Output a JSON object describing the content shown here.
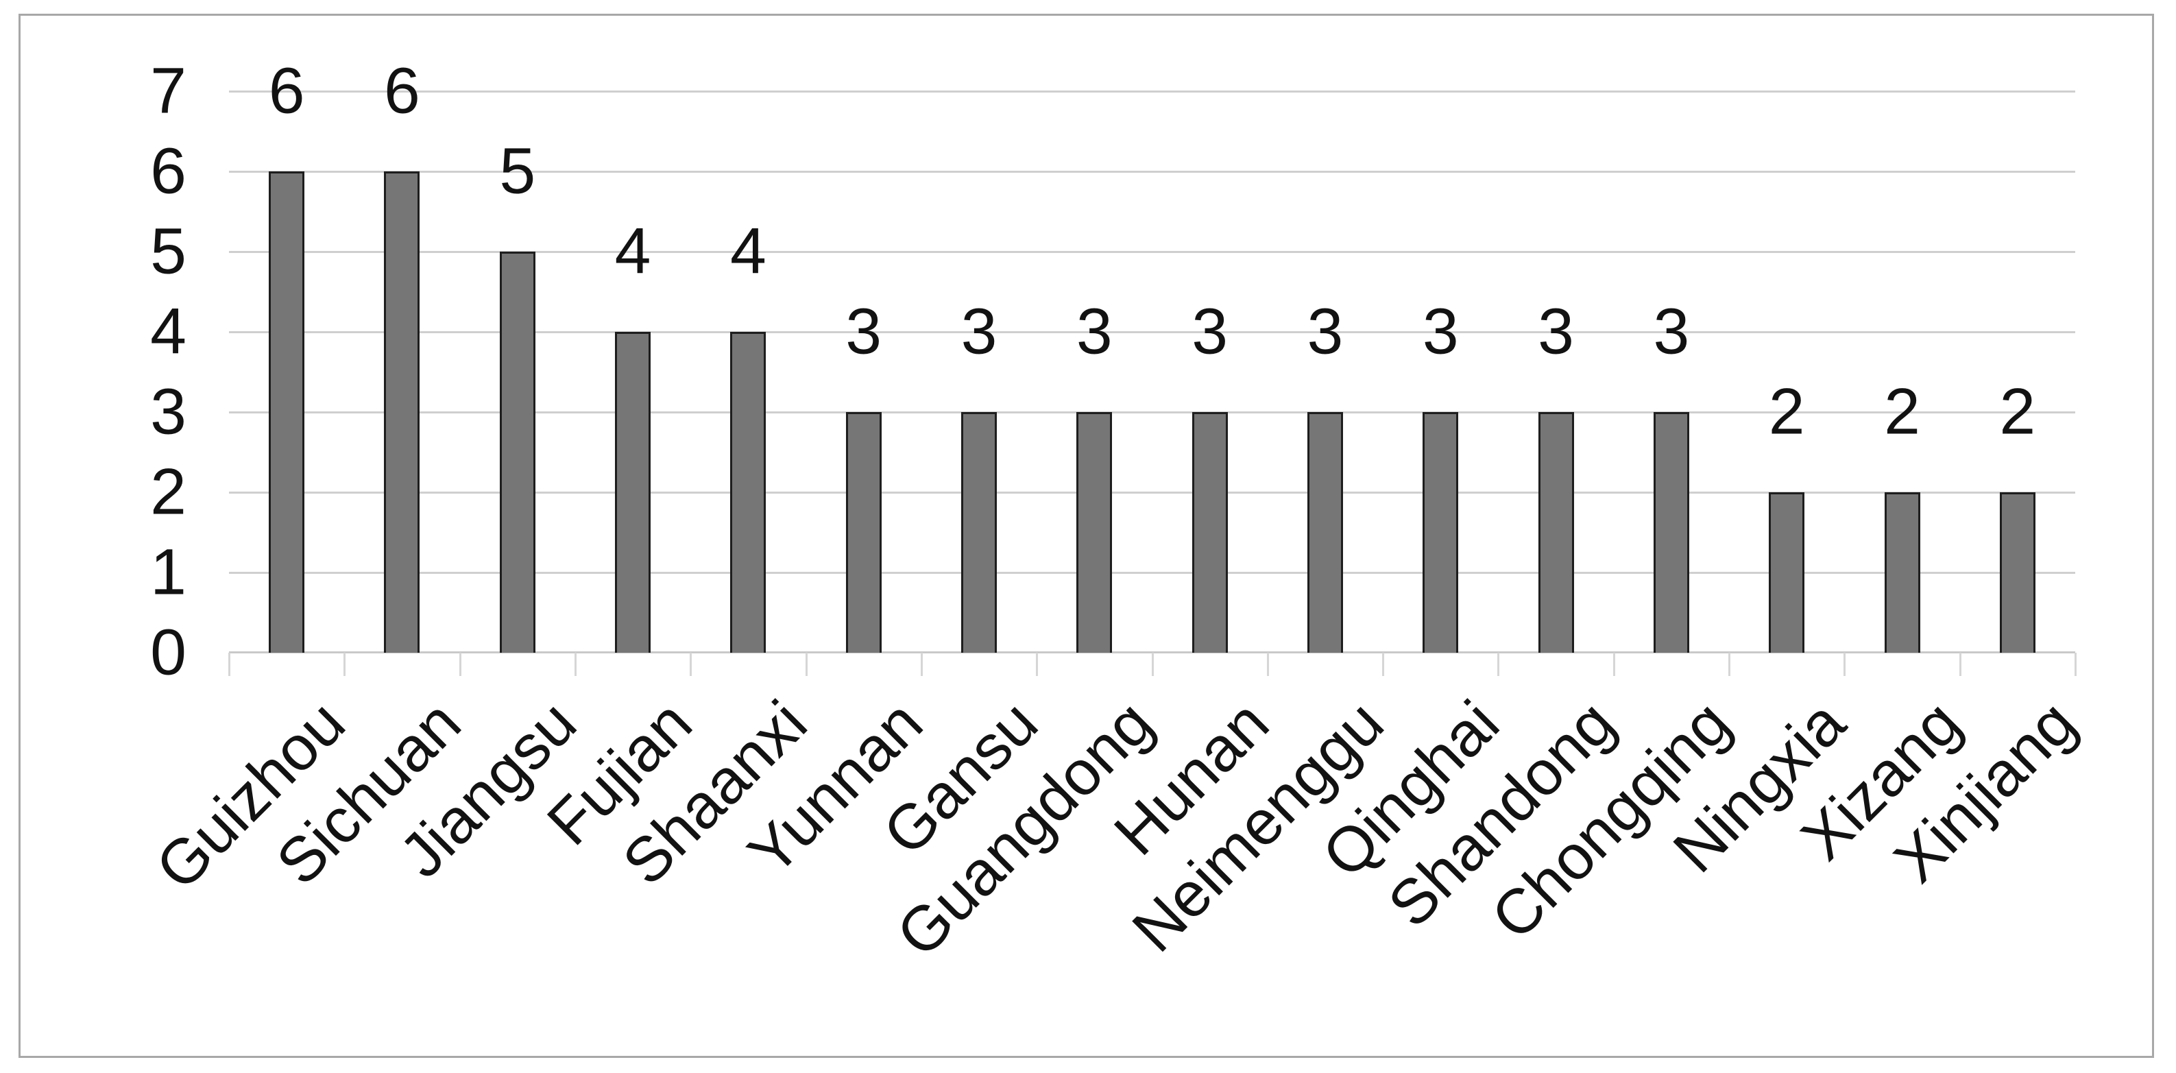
{
  "chart_data": {
    "type": "bar",
    "title": "",
    "xlabel": "",
    "ylabel": "",
    "categories": [
      "Guizhou",
      "Sichuan",
      "Jiangsu",
      "Fujian",
      "Shaanxi",
      "Yunnan",
      "Gansu",
      "Guangdong",
      "Hunan",
      "Neimenggu",
      "Qinghai",
      "Shandong",
      "Chongqing",
      "Ningxia",
      "Xizang",
      "Xinjiang"
    ],
    "values": [
      6,
      6,
      5,
      4,
      4,
      3,
      3,
      3,
      3,
      3,
      3,
      3,
      3,
      2,
      2,
      2
    ],
    "data_labels": [
      "6",
      "6",
      "5",
      "4",
      "4",
      "3",
      "3",
      "3",
      "3",
      "3",
      "3",
      "3",
      "3",
      "2",
      "2",
      "2"
    ],
    "ylim": [
      0,
      7
    ],
    "yticks": [
      "0",
      "1",
      "2",
      "3",
      "4",
      "5",
      "6",
      "7"
    ],
    "grid": true,
    "legend": "none",
    "x_label_rotation_deg": 45,
    "colors": {
      "bar_fill": "#767676",
      "bar_border": "#1e1e1e",
      "gridline": "#cfcfcf",
      "axis_line": "#c9c9c9",
      "tick": "#d6d6d6",
      "text": "#121212",
      "frame_border": "#a8a8a8",
      "background": "#ffffff"
    }
  }
}
